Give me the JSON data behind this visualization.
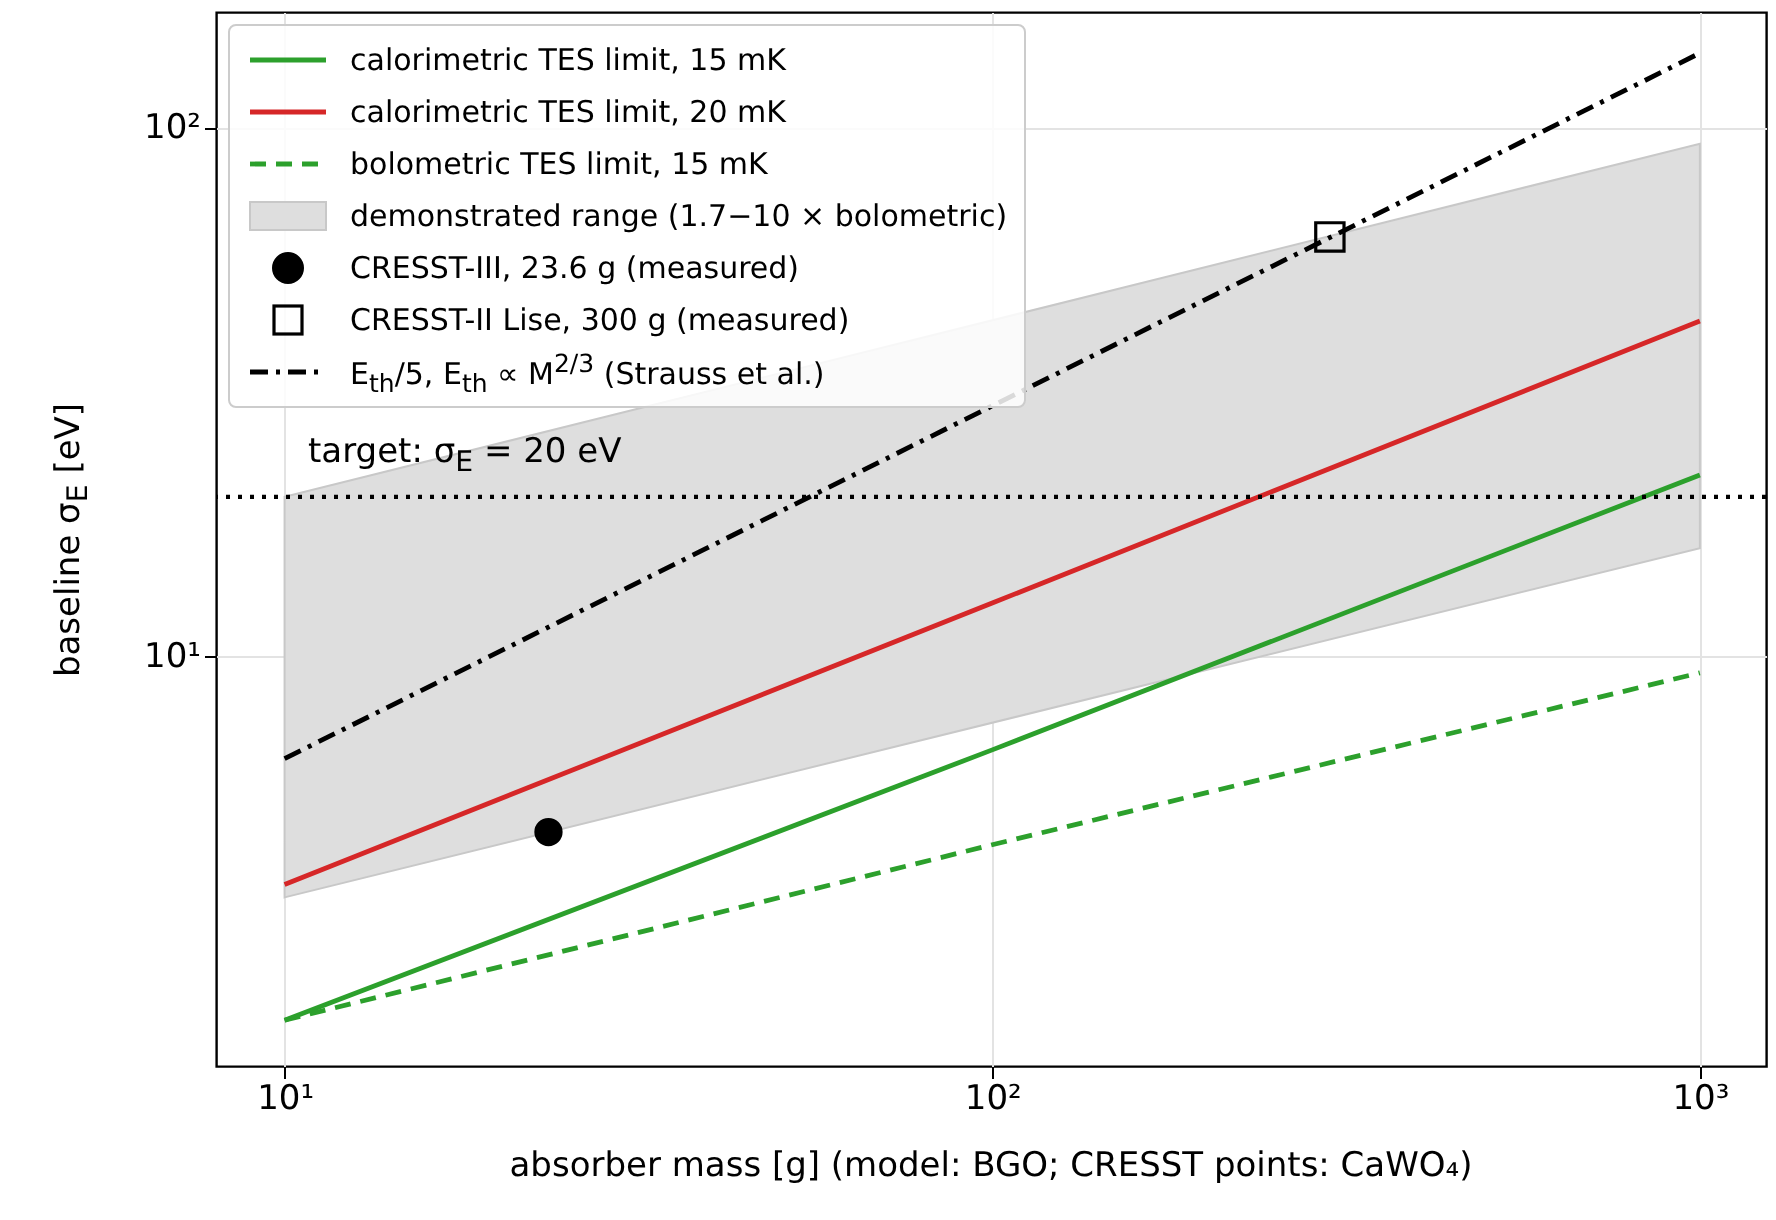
{
  "chart_data": {
    "type": "line",
    "xlabel": "absorber mass [g]  (model: BGO; CRESST points: CaWO₄)",
    "ylabel": "baseline σ$_{E}$ [eV]",
    "log": "xy",
    "grid": true,
    "legend": "top left",
    "xlim": [
      8,
      1240
    ],
    "ylim": [
      1.68,
      165
    ],
    "xticks": [
      {
        "value": 10,
        "label": "10¹"
      },
      {
        "value": 100,
        "label": "10²"
      },
      {
        "value": 1000,
        "label": "10³"
      }
    ],
    "yticks": [
      {
        "value": 10,
        "label": "10¹"
      },
      {
        "value": 100,
        "label": "10²"
      }
    ],
    "series": [
      {
        "name": "calorimetric TES limit, 15 mK",
        "color": "#2ca02c",
        "line_style": "solid",
        "x": [
          10,
          100,
          1000
        ],
        "values": [
          2.05,
          6.65,
          22
        ]
      },
      {
        "name": "calorimetric TES limit, 20 mK",
        "color": "#d62728",
        "line_style": "solid",
        "x": [
          10,
          100,
          1000
        ],
        "values": [
          3.7,
          12.6,
          43
        ]
      },
      {
        "name": "bolometric TES limit, 15 mK",
        "color": "#2ca02c",
        "line_style": "dashed",
        "x": [
          10,
          100,
          1000
        ],
        "values": [
          2.05,
          4.4,
          9.3
        ]
      },
      {
        "name": "demonstrated range (1.7−10 × bolometric)",
        "color": "#dedede",
        "x": [
          10,
          1000
        ],
        "values": [
          null,
          null
        ],
        "lower": [
          3.5,
          16
        ],
        "upper": [
          20,
          93
        ]
      },
      {
        "name": "CRESST-III, 23.6 g (measured)",
        "type": "scatter",
        "marker": "circle",
        "color": "#000000",
        "x": [
          23.6
        ],
        "values": [
          4.65
        ]
      },
      {
        "name": "CRESST-II Lise, 300 g (measured)",
        "type": "scatter",
        "marker": "square",
        "color": "#000000",
        "x": [
          300
        ],
        "values": [
          62
        ]
      },
      {
        "name": "E$_{th}$/5, E$_{th}$ ∝ M$^{2/3}$ (Strauss et al.)",
        "color": "#000000",
        "line_style": "dashdot",
        "x": [
          10,
          1000
        ],
        "values": [
          6.4,
          138
        ]
      }
    ],
    "ref_lines": [
      {
        "axis": "y",
        "value": 20,
        "label": "target: σ$_{E}$ = 20 eV",
        "color": "#000000",
        "line_style": "dotted"
      }
    ]
  }
}
